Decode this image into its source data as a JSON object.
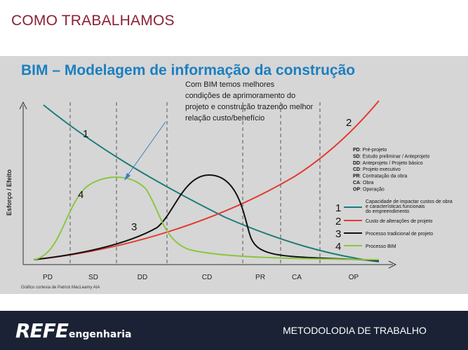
{
  "header": {
    "title": "COMO TRABALHAMOS"
  },
  "footer": {
    "logo_main": "REFE",
    "logo_sub": "engenharia",
    "label": "METODOLODIA DE TRABALHO"
  },
  "chart_data": {
    "type": "line",
    "title": "BIM – Modelagem de informação da construção",
    "ylabel": "Esforço / Efeito",
    "xlabel": "",
    "source": "Gráfico cortesia de Patrick MacLeamy AIA",
    "phases": [
      "PD",
      "SD",
      "DD",
      "CD",
      "PR",
      "CA",
      "OP"
    ],
    "phase_legend": [
      {
        "code": "PD",
        "desc": ": Pré-projeto"
      },
      {
        "code": "SD",
        "desc": ": Estudo preliminar / Anteprojeto"
      },
      {
        "code": "DD",
        "desc": ": Anteprojeto / Projeto básico"
      },
      {
        "code": "CD",
        "desc": ": Projeto executivo"
      },
      {
        "code": "PR",
        "desc": ": Contratação da obra"
      },
      {
        "code": "CA",
        "desc": ": Obra"
      },
      {
        "code": "OP",
        "desc": ": Operação"
      }
    ],
    "series": [
      {
        "id": "1",
        "name": "Capacidade de impactar custos de obra e características funcionais do empreendimento",
        "color": "#1e7c7a"
      },
      {
        "id": "2",
        "name": "Custo de alterações de projeto",
        "color": "#e23a2e"
      },
      {
        "id": "3",
        "name": "Processo tradicional de projeto",
        "color": "#111111"
      },
      {
        "id": "4",
        "name": "Processo BIM",
        "color": "#8cc640"
      }
    ],
    "annotation": "Com BIM temos melhores condições de aprimoramento do projeto e construção trazendo melhor relação custo/benefício",
    "colors": {
      "title": "#1b7fc0",
      "background": "#d6d6d6",
      "arrow": "#3a7ec9"
    }
  }
}
